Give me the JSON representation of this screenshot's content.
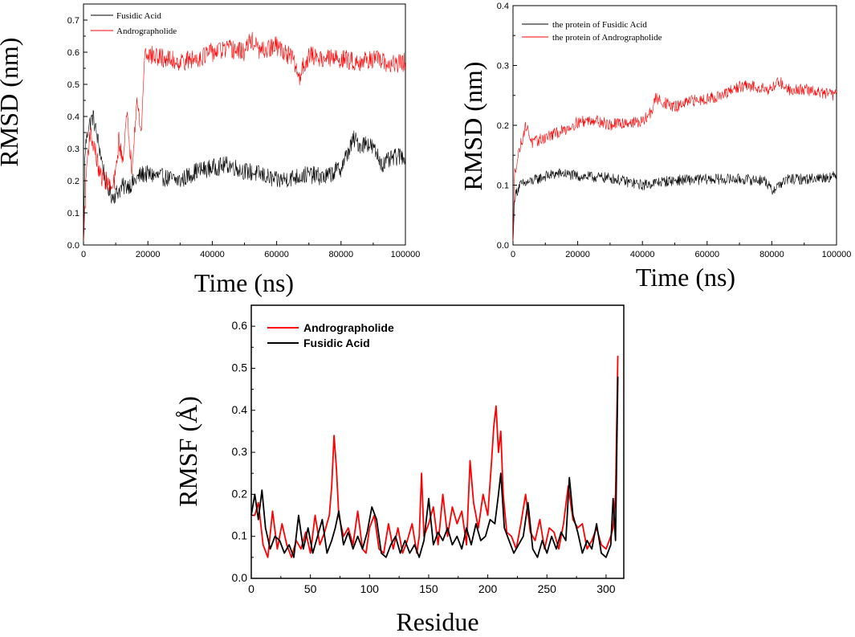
{
  "chart_data": [
    {
      "type": "line",
      "title": "",
      "xlabel": "Time (ns)",
      "ylabel": "RMSD (nm)",
      "xlim": [
        0,
        100000
      ],
      "ylim": [
        0,
        0.75
      ],
      "xticks": [
        "0",
        "20000",
        "40000",
        "60000",
        "80000",
        "100000"
      ],
      "yticks": [
        "0.0",
        "0.1",
        "0.2",
        "0.3",
        "0.4",
        "0.5",
        "0.6",
        "0.7"
      ],
      "legend_position": "top-left",
      "series": [
        {
          "name": "Fusidic Acid",
          "color": "#000000",
          "x": [
            0,
            500,
            1500,
            3000,
            5000,
            7000,
            9000,
            12000,
            15000,
            18000,
            20000,
            25000,
            30000,
            35000,
            40000,
            45000,
            50000,
            55000,
            60000,
            65000,
            70000,
            75000,
            80000,
            84000,
            86000,
            88000,
            90000,
            93000,
            96000,
            100000
          ],
          "y": [
            0.0,
            0.3,
            0.37,
            0.4,
            0.3,
            0.19,
            0.15,
            0.18,
            0.19,
            0.22,
            0.22,
            0.21,
            0.2,
            0.23,
            0.24,
            0.25,
            0.23,
            0.22,
            0.2,
            0.21,
            0.22,
            0.21,
            0.24,
            0.33,
            0.31,
            0.32,
            0.3,
            0.25,
            0.27,
            0.28
          ],
          "noise": 0.028
        },
        {
          "name": "Andrographolide",
          "color": "#ff0000",
          "x": [
            0,
            1000,
            2000,
            3500,
            5000,
            7000,
            9000,
            10000,
            11000,
            12000,
            13500,
            15000,
            16500,
            18000,
            19000,
            21000,
            25000,
            30000,
            35000,
            40000,
            45000,
            50000,
            52000,
            55000,
            60000,
            65000,
            67000,
            68000,
            70000,
            75000,
            80000,
            85000,
            90000,
            95000,
            100000
          ],
          "y": [
            0.0,
            0.25,
            0.35,
            0.3,
            0.22,
            0.2,
            0.17,
            0.22,
            0.33,
            0.26,
            0.4,
            0.24,
            0.45,
            0.35,
            0.6,
            0.59,
            0.58,
            0.57,
            0.58,
            0.6,
            0.61,
            0.6,
            0.64,
            0.6,
            0.62,
            0.58,
            0.52,
            0.55,
            0.59,
            0.58,
            0.58,
            0.57,
            0.58,
            0.56,
            0.57
          ],
          "noise": 0.03
        }
      ]
    },
    {
      "type": "line",
      "title": "",
      "xlabel": "Time (ns)",
      "ylabel": "RMSD (nm)",
      "xlim": [
        0,
        100000
      ],
      "ylim": [
        0,
        0.4
      ],
      "xticks": [
        "0",
        "20000",
        "40000",
        "60000",
        "80000",
        "100000"
      ],
      "yticks": [
        "0.0",
        "0.1",
        "0.2",
        "0.3",
        "0.4"
      ],
      "legend_position": "top-left",
      "series": [
        {
          "name": "the protein of Fusidic Acid",
          "color": "#000000",
          "x": [
            0,
            500,
            2000,
            5000,
            10000,
            15000,
            20000,
            30000,
            40000,
            45000,
            50000,
            60000,
            70000,
            78000,
            80000,
            82000,
            85000,
            90000,
            100000
          ],
          "y": [
            0.0,
            0.08,
            0.1,
            0.105,
            0.115,
            0.12,
            0.115,
            0.112,
            0.1,
            0.105,
            0.108,
            0.11,
            0.11,
            0.108,
            0.09,
            0.1,
            0.11,
            0.11,
            0.115
          ],
          "noise": 0.009
        },
        {
          "name": "the protein of Andrographolide",
          "color": "#ff0000",
          "x": [
            0,
            500,
            2000,
            4000,
            6000,
            10000,
            15000,
            20000,
            25000,
            30000,
            35000,
            40000,
            43000,
            44000,
            50000,
            55000,
            60000,
            65000,
            70000,
            75000,
            80000,
            82000,
            85000,
            90000,
            95000,
            100000
          ],
          "y": [
            0.0,
            0.12,
            0.16,
            0.2,
            0.17,
            0.18,
            0.19,
            0.205,
            0.21,
            0.2,
            0.205,
            0.205,
            0.225,
            0.245,
            0.23,
            0.24,
            0.245,
            0.25,
            0.265,
            0.265,
            0.26,
            0.275,
            0.26,
            0.26,
            0.255,
            0.25
          ],
          "noise": 0.01
        }
      ]
    },
    {
      "type": "line",
      "title": "",
      "xlabel": "Residue",
      "ylabel": "RMSF (Å)",
      "xlim": [
        0,
        315
      ],
      "ylim": [
        0,
        0.65
      ],
      "xticks": [
        "0",
        "50",
        "100",
        "150",
        "200",
        "250",
        "300"
      ],
      "yticks": [
        "0.0",
        "0.1",
        "0.2",
        "0.3",
        "0.4",
        "0.5",
        "0.6"
      ],
      "legend_position": "top-left",
      "series": [
        {
          "name": "Andrographolide",
          "color": "#ff0000",
          "x": [
            0,
            3,
            6,
            10,
            14,
            18,
            22,
            26,
            30,
            34,
            38,
            42,
            46,
            50,
            54,
            58,
            62,
            66,
            68,
            70,
            72,
            74,
            78,
            82,
            86,
            90,
            94,
            97,
            100,
            104,
            108,
            112,
            116,
            120,
            124,
            128,
            132,
            136,
            140,
            142,
            144,
            146,
            150,
            154,
            158,
            162,
            166,
            170,
            174,
            178,
            182,
            185,
            188,
            192,
            196,
            200,
            203,
            205,
            207,
            209,
            211,
            213,
            216,
            220,
            224,
            228,
            232,
            236,
            240,
            244,
            248,
            252,
            256,
            260,
            264,
            268,
            272,
            276,
            280,
            284,
            288,
            292,
            296,
            300,
            304,
            306,
            308,
            310
          ],
          "y": [
            0.15,
            0.15,
            0.18,
            0.08,
            0.05,
            0.16,
            0.07,
            0.13,
            0.08,
            0.05,
            0.09,
            0.07,
            0.11,
            0.06,
            0.15,
            0.08,
            0.11,
            0.15,
            0.22,
            0.34,
            0.26,
            0.15,
            0.1,
            0.12,
            0.08,
            0.16,
            0.07,
            0.06,
            0.12,
            0.15,
            0.07,
            0.06,
            0.13,
            0.07,
            0.12,
            0.06,
            0.09,
            0.13,
            0.06,
            0.1,
            0.25,
            0.1,
            0.13,
            0.17,
            0.08,
            0.2,
            0.1,
            0.17,
            0.13,
            0.16,
            0.08,
            0.28,
            0.18,
            0.12,
            0.2,
            0.15,
            0.27,
            0.36,
            0.41,
            0.3,
            0.35,
            0.2,
            0.11,
            0.1,
            0.07,
            0.13,
            0.2,
            0.11,
            0.09,
            0.14,
            0.07,
            0.12,
            0.11,
            0.07,
            0.13,
            0.22,
            0.14,
            0.12,
            0.13,
            0.07,
            0.09,
            0.12,
            0.08,
            0.07,
            0.1,
            0.12,
            0.2,
            0.53
          ]
        },
        {
          "name": "Fusidic Acid",
          "color": "#000000",
          "x": [
            0,
            3,
            6,
            9,
            12,
            16,
            20,
            24,
            28,
            32,
            36,
            40,
            44,
            48,
            52,
            56,
            60,
            64,
            68,
            71,
            74,
            78,
            82,
            86,
            90,
            94,
            98,
            102,
            106,
            110,
            114,
            118,
            122,
            126,
            130,
            134,
            138,
            142,
            146,
            150,
            154,
            158,
            162,
            166,
            170,
            174,
            178,
            182,
            186,
            190,
            194,
            198,
            202,
            206,
            209,
            211,
            214,
            218,
            222,
            226,
            230,
            234,
            238,
            242,
            246,
            250,
            254,
            258,
            262,
            266,
            269,
            272,
            276,
            280,
            284,
            288,
            292,
            296,
            300,
            304,
            306,
            308,
            310
          ],
          "y": [
            0.15,
            0.2,
            0.14,
            0.21,
            0.12,
            0.07,
            0.1,
            0.09,
            0.06,
            0.08,
            0.05,
            0.15,
            0.07,
            0.12,
            0.06,
            0.1,
            0.14,
            0.06,
            0.09,
            0.12,
            0.16,
            0.08,
            0.11,
            0.07,
            0.1,
            0.07,
            0.11,
            0.17,
            0.14,
            0.06,
            0.05,
            0.08,
            0.1,
            0.06,
            0.09,
            0.06,
            0.08,
            0.05,
            0.09,
            0.19,
            0.08,
            0.11,
            0.09,
            0.12,
            0.08,
            0.1,
            0.07,
            0.12,
            0.08,
            0.13,
            0.09,
            0.1,
            0.14,
            0.13,
            0.2,
            0.25,
            0.12,
            0.09,
            0.06,
            0.08,
            0.1,
            0.18,
            0.07,
            0.05,
            0.09,
            0.06,
            0.1,
            0.07,
            0.11,
            0.09,
            0.24,
            0.15,
            0.11,
            0.06,
            0.09,
            0.07,
            0.13,
            0.06,
            0.05,
            0.08,
            0.19,
            0.09,
            0.48
          ]
        }
      ]
    }
  ]
}
